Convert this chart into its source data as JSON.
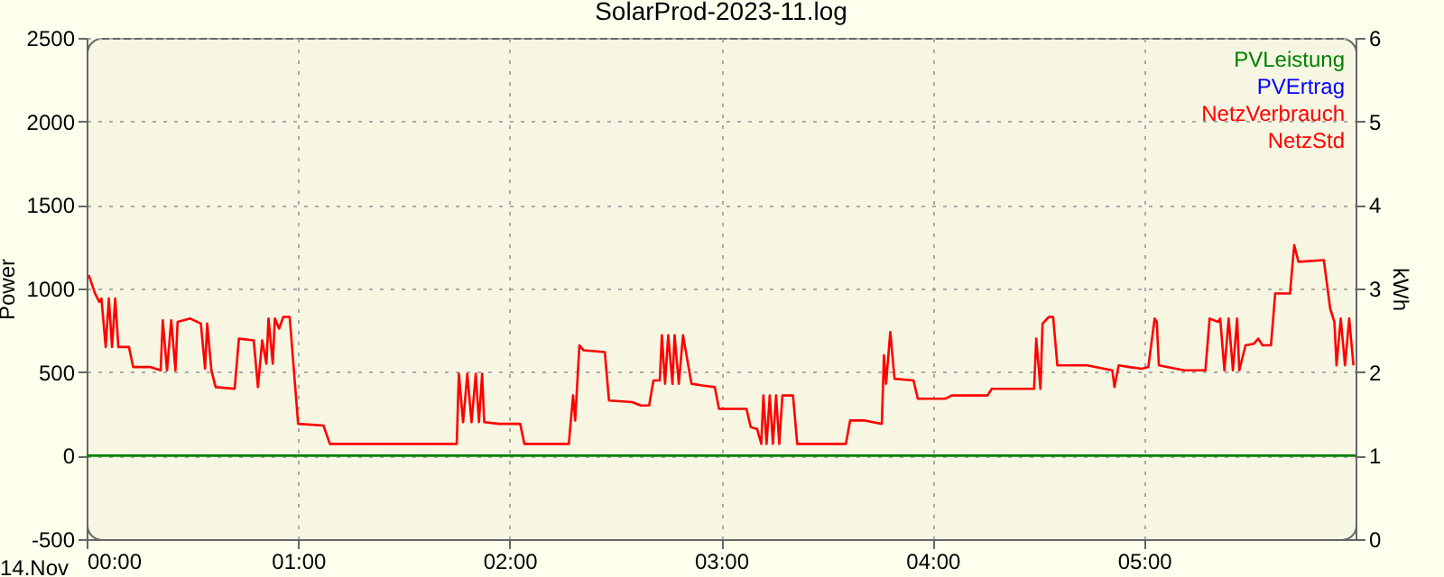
{
  "chart_data": {
    "type": "line",
    "title": "SolarProd-2023-11.log",
    "ylabel": "Power",
    "y2label": "kWh",
    "annotations": [
      "14.Nov"
    ],
    "xlim": [
      0,
      6
    ],
    "xticks": [
      {
        "value": 0,
        "label": "00:00"
      },
      {
        "value": 1,
        "label": "01:00"
      },
      {
        "value": 2,
        "label": "02:00"
      },
      {
        "value": 3,
        "label": "03:00"
      },
      {
        "value": 4,
        "label": "04:00"
      },
      {
        "value": 5,
        "label": "05:00"
      }
    ],
    "ylim": [
      -500,
      2500
    ],
    "yticks": [
      -500,
      0,
      500,
      1000,
      1500,
      2000,
      2500
    ],
    "y2lim": [
      0,
      6
    ],
    "y2ticks": [
      0,
      1,
      2,
      3,
      4,
      5,
      6
    ],
    "grid": true,
    "legend": "top right",
    "line_style": "solid",
    "marker": "none",
    "series": [
      {
        "name": "PVLeistung",
        "color": "#008000",
        "x": [
          0,
          6
        ],
        "values": [
          0,
          0
        ]
      },
      {
        "name": "PVErtrag",
        "color": "#0000ff",
        "axis": "y2"
      },
      {
        "name": "NetzVerbrauch",
        "color": "#ff0000",
        "x": [
          0.01,
          0.04,
          0.06,
          0.07,
          0.09,
          0.105,
          0.12,
          0.135,
          0.15,
          0.2,
          0.22,
          0.3,
          0.35,
          0.36,
          0.38,
          0.4,
          0.42,
          0.43,
          0.49,
          0.54,
          0.56,
          0.57,
          0.59,
          0.61,
          0.7,
          0.72,
          0.79,
          0.81,
          0.83,
          0.85,
          0.86,
          0.88,
          0.89,
          0.91,
          0.93,
          0.96,
          1.0,
          1.12,
          1.15,
          1.75,
          1.76,
          1.78,
          1.8,
          1.82,
          1.84,
          1.855,
          1.87,
          1.88,
          1.95,
          2.05,
          2.07,
          2.28,
          2.3,
          2.31,
          2.33,
          2.35,
          2.45,
          2.47,
          2.58,
          2.62,
          2.66,
          2.68,
          2.71,
          2.72,
          2.735,
          2.75,
          2.77,
          2.78,
          2.8,
          2.82,
          2.86,
          2.91,
          2.97,
          2.99,
          3.12,
          3.14,
          3.17,
          3.19,
          3.2,
          3.215,
          3.23,
          3.245,
          3.26,
          3.275,
          3.29,
          3.31,
          3.34,
          3.36,
          3.59,
          3.61,
          3.68,
          3.76,
          3.77,
          3.78,
          3.8,
          3.82,
          3.91,
          3.93,
          4.06,
          4.09,
          4.26,
          4.28,
          4.48,
          4.49,
          4.51,
          4.52,
          4.55,
          4.57,
          4.59,
          4.73,
          4.85,
          4.86,
          4.88,
          4.93,
          4.99,
          5.02,
          5.05,
          5.06,
          5.07,
          5.19,
          5.29,
          5.31,
          5.35,
          5.36,
          5.38,
          5.4,
          5.42,
          5.44,
          5.45,
          5.48,
          5.52,
          5.54,
          5.56,
          5.6,
          5.62,
          5.69,
          5.71,
          5.73,
          5.85,
          5.88,
          5.9,
          5.91,
          5.93,
          5.95,
          5.97,
          5.99
        ],
        "values": [
          1080,
          970,
          920,
          940,
          650,
          940,
          650,
          940,
          650,
          650,
          530,
          530,
          510,
          810,
          510,
          810,
          510,
          800,
          820,
          790,
          520,
          790,
          510,
          410,
          400,
          700,
          690,
          410,
          690,
          550,
          820,
          550,
          820,
          760,
          830,
          830,
          190,
          180,
          70,
          70,
          490,
          200,
          490,
          200,
          490,
          200,
          490,
          200,
          190,
          190,
          70,
          70,
          360,
          210,
          660,
          630,
          620,
          330,
          320,
          300,
          300,
          450,
          450,
          720,
          430,
          720,
          430,
          720,
          430,
          720,
          430,
          420,
          410,
          280,
          280,
          170,
          160,
          70,
          360,
          70,
          360,
          70,
          360,
          70,
          360,
          360,
          360,
          70,
          70,
          210,
          210,
          190,
          600,
          430,
          740,
          460,
          450,
          340,
          340,
          360,
          360,
          400,
          400,
          700,
          400,
          790,
          830,
          830,
          540,
          540,
          510,
          410,
          540,
          530,
          520,
          530,
          820,
          800,
          540,
          510,
          510,
          820,
          800,
          820,
          510,
          820,
          510,
          820,
          510,
          660,
          670,
          700,
          660,
          660,
          970,
          970,
          1260,
          1160,
          1170,
          880,
          800,
          540,
          820,
          540,
          820,
          540
        ]
      },
      {
        "name": "NetzStd",
        "color": "#ff0000",
        "axis": "y2"
      }
    ]
  }
}
